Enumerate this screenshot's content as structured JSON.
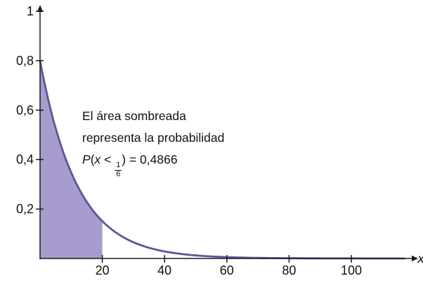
{
  "figure": {
    "x_axis_label": "x",
    "annotation": {
      "line1": "El área sombreada",
      "line2": "representa la probabilidad",
      "prob": {
        "p": "P",
        "open": "(",
        "var": "x",
        "lt": " < ",
        "frac_num": "1",
        "frac_den": "6",
        "close": ")",
        "equals": " = ",
        "value": "0,4866"
      }
    }
  },
  "chart_data": {
    "type": "area",
    "title": "",
    "xlabel": "x",
    "ylabel": "",
    "grid": false,
    "legend": "none",
    "xlim": [
      0,
      118
    ],
    "ylim": [
      0,
      1.05
    ],
    "x_ticks": [
      20,
      40,
      60,
      80,
      100
    ],
    "y_ticks": [
      "1",
      "0,8",
      "0,6",
      "0,4",
      "0,2"
    ],
    "y_tick_values": [
      1,
      0.8,
      0.6,
      0.4,
      0.2
    ],
    "curve": {
      "kind": "exponential-decay",
      "formula": "y = 0.8 * exp(-x/12)",
      "y0": 0.8,
      "decay": 12,
      "x_range": [
        0,
        117
      ],
      "points": [
        [
          0,
          0.8
        ],
        [
          5,
          0.527
        ],
        [
          10,
          0.348
        ],
        [
          15,
          0.229
        ],
        [
          20,
          0.151
        ],
        [
          30,
          0.066
        ],
        [
          40,
          0.028
        ],
        [
          50,
          0.012
        ],
        [
          60,
          0.005
        ],
        [
          80,
          0.001
        ],
        [
          100,
          0.0002
        ]
      ]
    },
    "shaded_region": {
      "x_from": 0,
      "x_to": 20,
      "probability": 0.4866,
      "label": "P(x < 1/6) = 0,4866"
    },
    "colors": {
      "curve": "#5a5699",
      "fill": "#a79ccd",
      "axis": "#1a1a1a",
      "text": "#111111"
    }
  }
}
